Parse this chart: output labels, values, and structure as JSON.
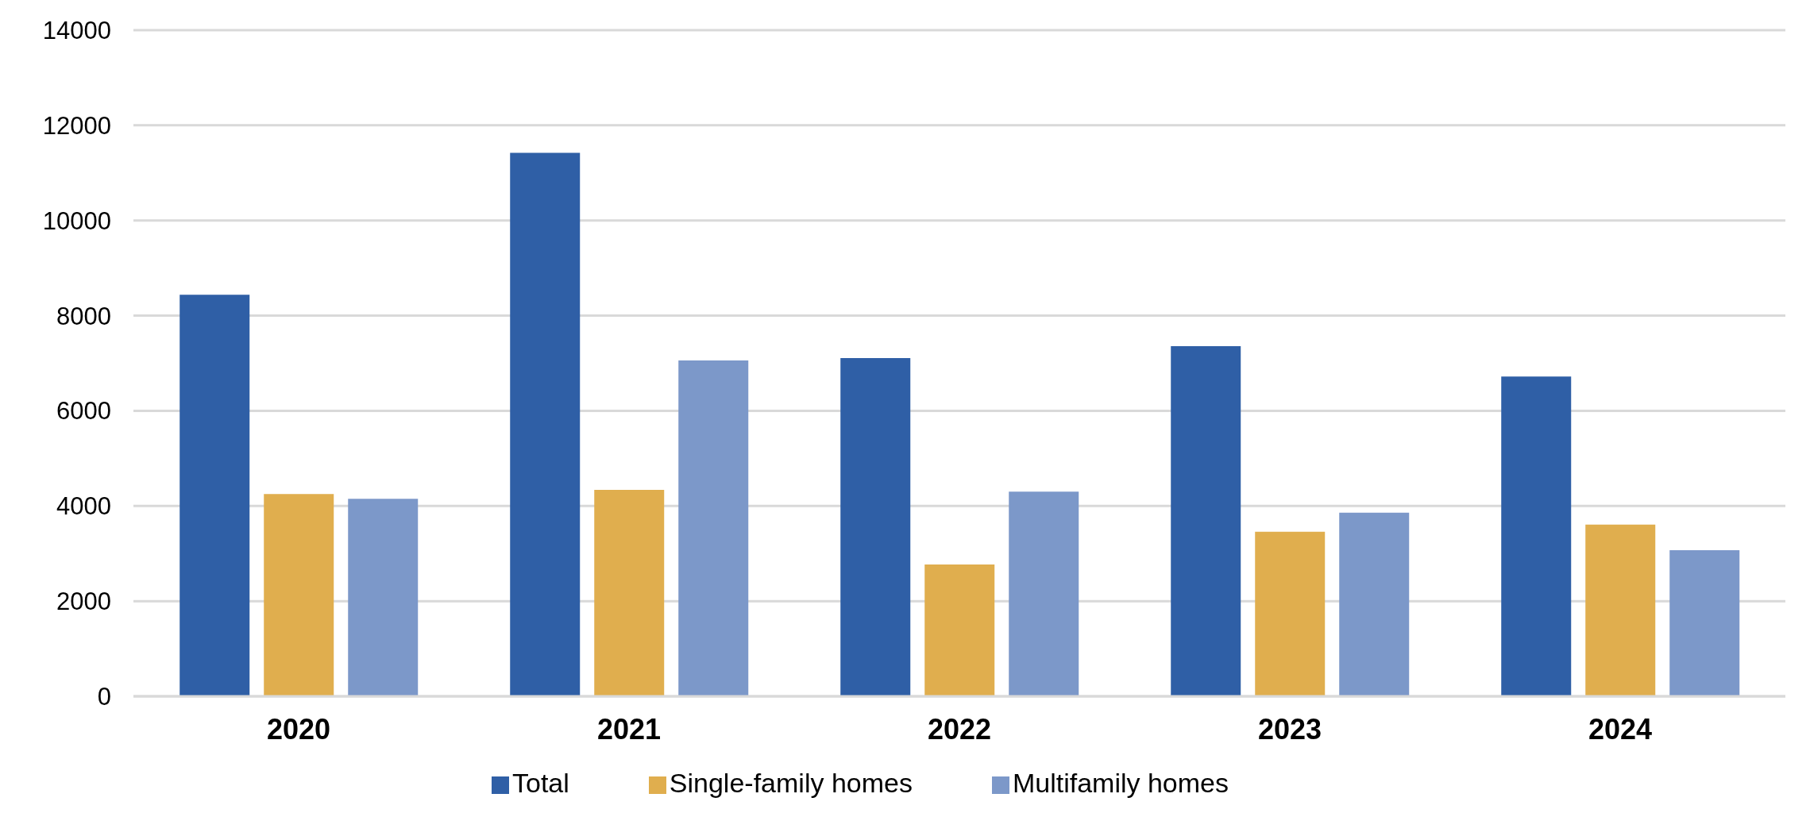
{
  "chart_data": {
    "type": "bar",
    "categories": [
      "2020",
      "2021",
      "2022",
      "2023",
      "2024"
    ],
    "series": [
      {
        "name": "Total",
        "color": "#2f5fa6",
        "values": [
          8440,
          11420,
          7110,
          7360,
          6720
        ]
      },
      {
        "name": "Single-family homes",
        "color": "#e0ae4e",
        "values": [
          4250,
          4340,
          2770,
          3460,
          3610
        ]
      },
      {
        "name": "Multifamily homes",
        "color": "#7c98c9",
        "values": [
          4150,
          7060,
          4300,
          3860,
          3070
        ]
      }
    ],
    "ylim": [
      0,
      14000
    ],
    "yticks": [
      0,
      2000,
      4000,
      6000,
      8000,
      10000,
      12000,
      14000
    ],
    "grid": "y",
    "legend": "bottom"
  }
}
